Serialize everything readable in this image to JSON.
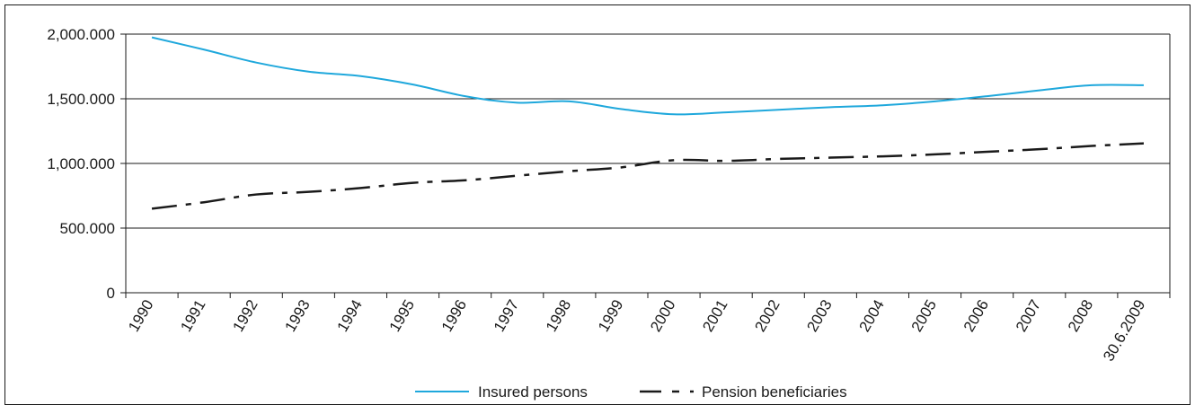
{
  "chart_data": {
    "type": "line",
    "categories": [
      "1990",
      "1991",
      "1992",
      "1993",
      "1994",
      "1995",
      "1996",
      "1997",
      "1998",
      "1999",
      "2000",
      "2001",
      "2002",
      "2003",
      "2004",
      "2005",
      "2006",
      "2007",
      "2008",
      "30.6.2009"
    ],
    "series": [
      {
        "name": "Insured persons",
        "color": "#1fa8dc",
        "style": "solid",
        "values": [
          1975000,
          1880000,
          1780000,
          1710000,
          1675000,
          1610000,
          1520000,
          1470000,
          1480000,
          1420000,
          1380000,
          1395000,
          1415000,
          1435000,
          1450000,
          1480000,
          1520000,
          1565000,
          1605000,
          1605000
        ]
      },
      {
        "name": "Pension beneficiaries",
        "color": "#1a1a1a",
        "style": "dash-dot",
        "values": [
          650000,
          700000,
          760000,
          780000,
          810000,
          850000,
          870000,
          905000,
          940000,
          970000,
          1025000,
          1020000,
          1035000,
          1045000,
          1055000,
          1070000,
          1090000,
          1110000,
          1135000,
          1155000
        ]
      }
    ],
    "yticks": [
      0,
      500000,
      1000000,
      1500000,
      2000000
    ],
    "ytick_labels": [
      "0",
      "500.000",
      "1,000.000",
      "1,500.000",
      "2,000.000"
    ],
    "ylim": [
      0,
      2000000
    ],
    "grid": true,
    "legend_position": "bottom",
    "title": "",
    "xlabel": "",
    "ylabel": ""
  }
}
